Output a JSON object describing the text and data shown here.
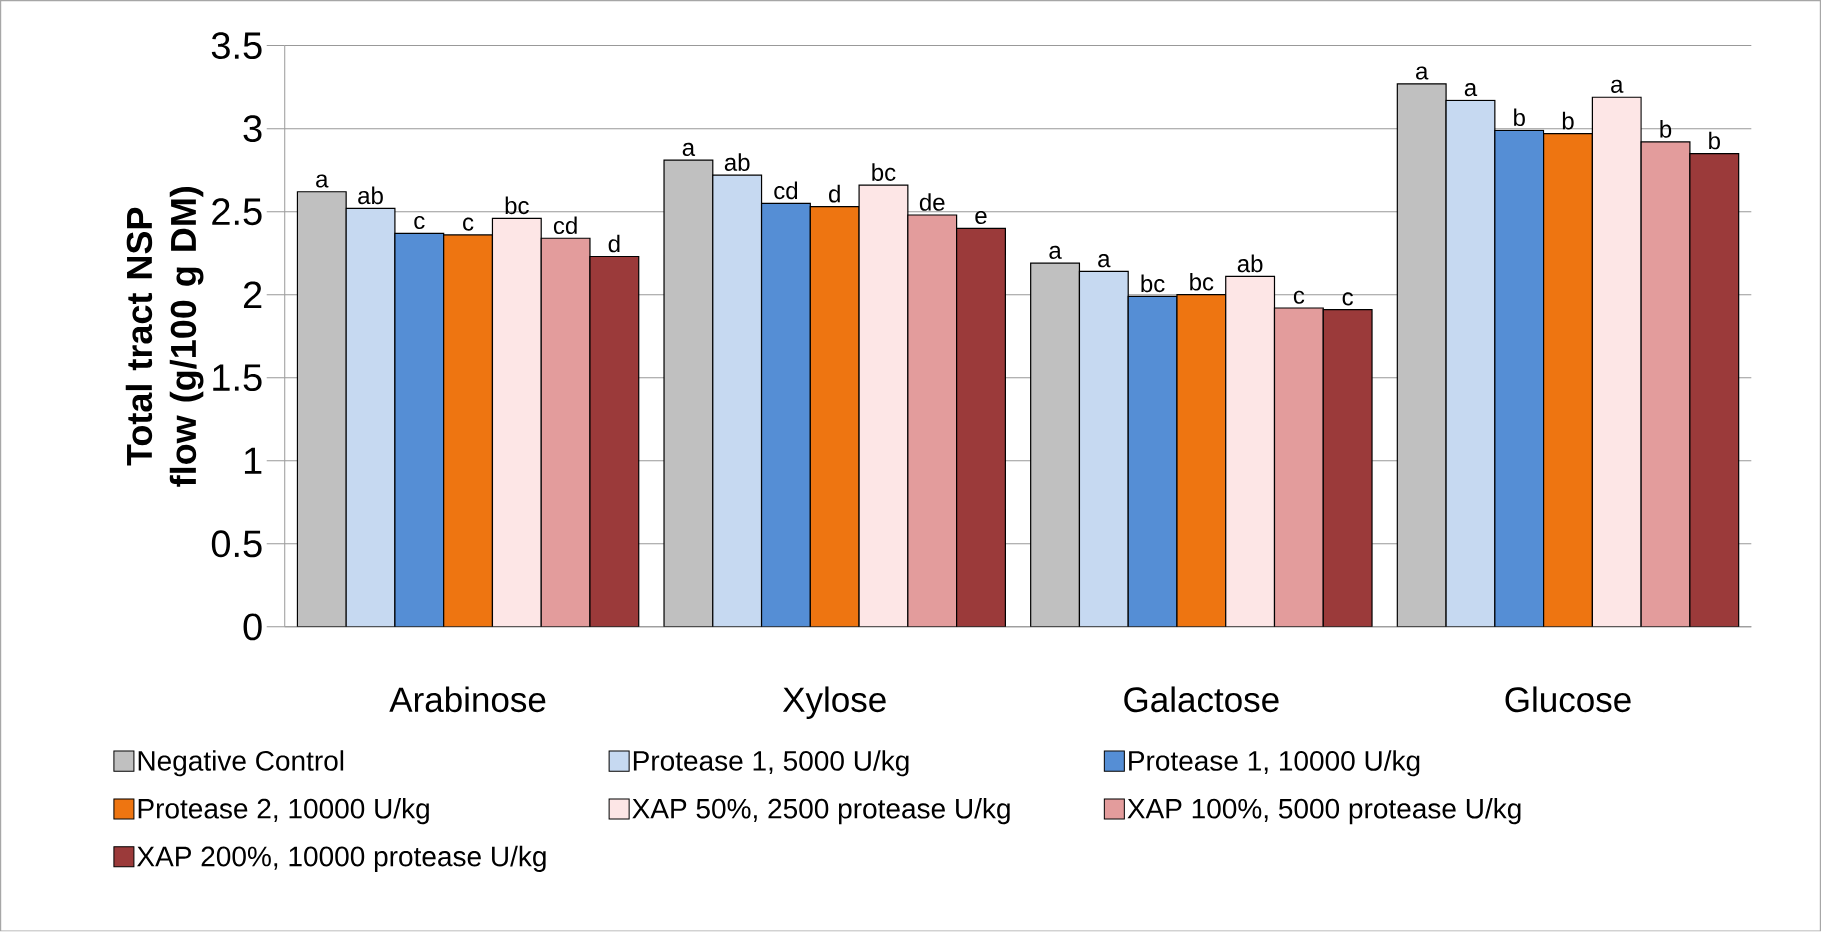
{
  "chart_data": {
    "type": "bar",
    "ylabel": "Total tract NSP flow (g/100 g DM)",
    "categories": [
      "Arabinose",
      "Xylose",
      "Galactose",
      "Glucose"
    ],
    "ylim": [
      0,
      3.5
    ],
    "yticks": [
      0,
      0.5,
      1,
      1.5,
      2,
      2.5,
      3,
      3.5
    ],
    "grid": "y",
    "legend": "bottom",
    "series": [
      {
        "name": "Negative Control",
        "color": "#c0c0c0",
        "values": [
          2.62,
          2.81,
          2.19,
          3.27
        ],
        "value_labels": [
          "a",
          "a",
          "a",
          "a"
        ]
      },
      {
        "name": "Protease 1, 5000 U/kg",
        "color": "#c6d9f1",
        "values": [
          2.52,
          2.72,
          2.14,
          3.17
        ],
        "value_labels": [
          "ab",
          "ab",
          "a",
          "a"
        ]
      },
      {
        "name": "Protease 1, 10000 U/kg",
        "color": "#558ed5",
        "values": [
          2.37,
          2.55,
          1.99,
          2.99
        ],
        "value_labels": [
          "c",
          "cd",
          "bc",
          "b"
        ]
      },
      {
        "name": "Protease 2, 10000 U/kg",
        "color": "#ee7511",
        "values": [
          2.36,
          2.53,
          2.0,
          2.97
        ],
        "value_labels": [
          "c",
          "d",
          "bc",
          "b"
        ]
      },
      {
        "name": "XAP 50%, 2500 protease U/kg",
        "color": "#fde6e6",
        "values": [
          2.46,
          2.66,
          2.11,
          3.19
        ],
        "value_labels": [
          "bc",
          "bc",
          "ab",
          "a"
        ]
      },
      {
        "name": "XAP 100%, 5000 protease U/kg",
        "color": "#e39c9c",
        "values": [
          2.34,
          2.48,
          1.92,
          2.92
        ],
        "value_labels": [
          "cd",
          "de",
          "c",
          "b"
        ]
      },
      {
        "name": "XAP 200%, 10000 protease U/kg",
        "color": "#9b3a3a",
        "values": [
          2.23,
          2.4,
          1.91,
          2.85
        ],
        "value_labels": [
          "d",
          "e",
          "c",
          "b"
        ]
      }
    ]
  }
}
